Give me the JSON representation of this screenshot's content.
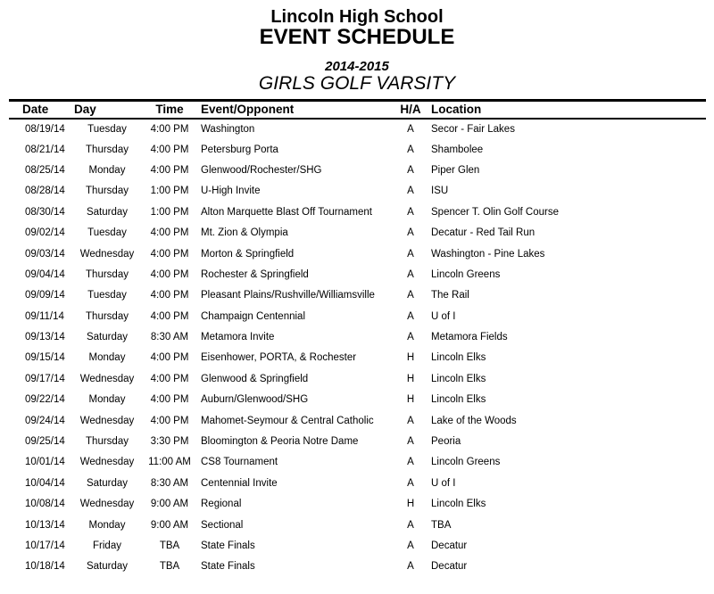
{
  "header": {
    "school": "Lincoln High School",
    "title": "EVENT SCHEDULE",
    "season": "2014-2015",
    "team": "GIRLS GOLF VARSITY"
  },
  "table": {
    "columns": [
      "Date",
      "Day",
      "Time",
      "Event/Opponent",
      "H/A",
      "Location"
    ],
    "rows": [
      {
        "date": "08/19/14",
        "day": "Tuesday",
        "time": "4:00 PM",
        "event": "Washington",
        "ha": "A",
        "location": "Secor - Fair Lakes"
      },
      {
        "date": "08/21/14",
        "day": "Thursday",
        "time": "4:00 PM",
        "event": "Petersburg Porta",
        "ha": "A",
        "location": "Shambolee"
      },
      {
        "date": "08/25/14",
        "day": "Monday",
        "time": "4:00 PM",
        "event": "Glenwood/Rochester/SHG",
        "ha": "A",
        "location": "Piper Glen"
      },
      {
        "date": "08/28/14",
        "day": "Thursday",
        "time": "1:00 PM",
        "event": "U-High Invite",
        "ha": "A",
        "location": "ISU"
      },
      {
        "date": "08/30/14",
        "day": "Saturday",
        "time": "1:00 PM",
        "event": "Alton Marquette Blast Off Tournament",
        "ha": "A",
        "location": "Spencer T. Olin Golf Course"
      },
      {
        "date": "09/02/14",
        "day": "Tuesday",
        "time": "4:00 PM",
        "event": "Mt. Zion & Olympia",
        "ha": "A",
        "location": "Decatur - Red Tail Run"
      },
      {
        "date": "09/03/14",
        "day": "Wednesday",
        "time": "4:00 PM",
        "event": "Morton & Springfield",
        "ha": "A",
        "location": "Washington - Pine Lakes"
      },
      {
        "date": "09/04/14",
        "day": "Thursday",
        "time": "4:00 PM",
        "event": "Rochester & Springfield",
        "ha": "A",
        "location": "Lincoln Greens"
      },
      {
        "date": "09/09/14",
        "day": "Tuesday",
        "time": "4:00 PM",
        "event": "Pleasant Plains/Rushville/Williamsville",
        "ha": "A",
        "location": "The Rail"
      },
      {
        "date": "09/11/14",
        "day": "Thursday",
        "time": "4:00 PM",
        "event": "Champaign Centennial",
        "ha": "A",
        "location": "U of I"
      },
      {
        "date": "09/13/14",
        "day": "Saturday",
        "time": "8:30 AM",
        "event": "Metamora Invite",
        "ha": "A",
        "location": "Metamora Fields"
      },
      {
        "date": "09/15/14",
        "day": "Monday",
        "time": "4:00 PM",
        "event": "Eisenhower, PORTA, & Rochester",
        "ha": "H",
        "location": "Lincoln Elks"
      },
      {
        "date": "09/17/14",
        "day": "Wednesday",
        "time": "4:00 PM",
        "event": "Glenwood & Springfield",
        "ha": "H",
        "location": "Lincoln Elks"
      },
      {
        "date": "09/22/14",
        "day": "Monday",
        "time": "4:00 PM",
        "event": "Auburn/Glenwood/SHG",
        "ha": "H",
        "location": "Lincoln Elks"
      },
      {
        "date": "09/24/14",
        "day": "Wednesday",
        "time": "4:00 PM",
        "event": "Mahomet-Seymour & Central Catholic",
        "ha": "A",
        "location": "Lake of the Woods"
      },
      {
        "date": "09/25/14",
        "day": "Thursday",
        "time": "3:30 PM",
        "event": "Bloomington & Peoria Notre Dame",
        "ha": "A",
        "location": "Peoria"
      },
      {
        "date": "10/01/14",
        "day": "Wednesday",
        "time": "11:00 AM",
        "event": "CS8 Tournament",
        "ha": "A",
        "location": "Lincoln Greens"
      },
      {
        "date": "10/04/14",
        "day": "Saturday",
        "time": "8:30 AM",
        "event": "Centennial Invite",
        "ha": "A",
        "location": "U of I"
      },
      {
        "date": "10/08/14",
        "day": "Wednesday",
        "time": "9:00 AM",
        "event": "Regional",
        "ha": "H",
        "location": "Lincoln Elks"
      },
      {
        "date": "10/13/14",
        "day": "Monday",
        "time": "9:00 AM",
        "event": "Sectional",
        "ha": "A",
        "location": "TBA"
      },
      {
        "date": "10/17/14",
        "day": "Friday",
        "time": "TBA",
        "event": "State Finals",
        "ha": "A",
        "location": "Decatur"
      },
      {
        "date": "10/18/14",
        "day": "Saturday",
        "time": "TBA",
        "event": "State Finals",
        "ha": "A",
        "location": "Decatur"
      }
    ]
  },
  "colors": {
    "text": "#000000",
    "rule": "#000000",
    "background": "#ffffff"
  }
}
